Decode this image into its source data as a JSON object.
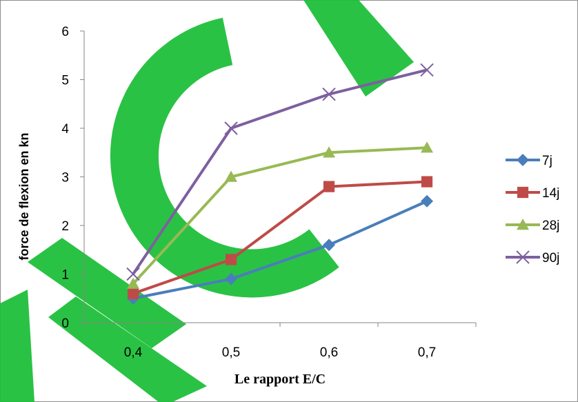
{
  "chart_data": {
    "type": "line",
    "xlabel": "Le rapport E/C",
    "ylabel": "force de flexion en kn",
    "categories": [
      "0,4",
      "0,5",
      "0,6",
      "0,7"
    ],
    "ylim": [
      0,
      6
    ],
    "yticks": [
      "0",
      "1",
      "2",
      "3",
      "4",
      "5",
      "6"
    ],
    "grid": false,
    "legend_position": "right",
    "watermark_color": "#1fbf3a",
    "series": [
      {
        "name": "7j",
        "values": [
          0.5,
          0.9,
          1.6,
          2.5
        ],
        "color": "#4a7ebb",
        "marker": "diamond"
      },
      {
        "name": "14j",
        "values": [
          0.6,
          1.3,
          2.8,
          2.9
        ],
        "color": "#be4b48",
        "marker": "square"
      },
      {
        "name": "28j",
        "values": [
          0.8,
          3.0,
          3.5,
          3.6
        ],
        "color": "#98b954",
        "marker": "triangle"
      },
      {
        "name": "90j",
        "values": [
          1.0,
          4.0,
          4.7,
          5.2
        ],
        "color": "#7d60a0",
        "marker": "cross"
      }
    ]
  }
}
